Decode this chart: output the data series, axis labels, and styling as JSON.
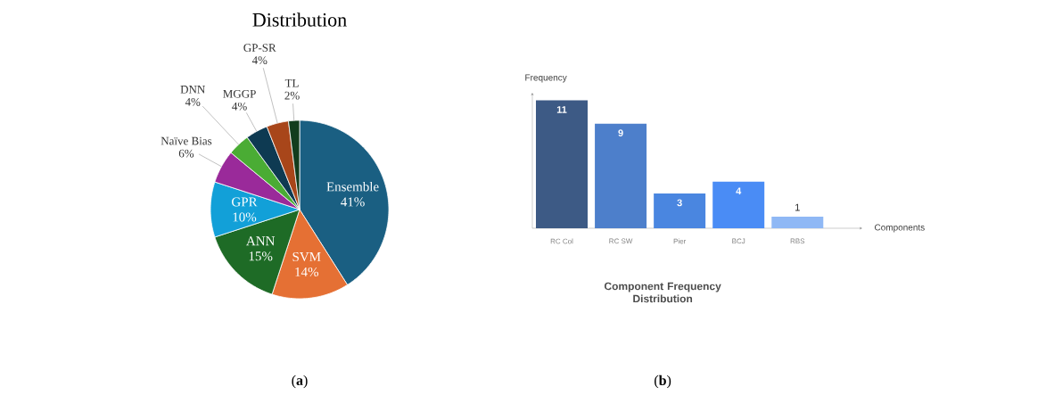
{
  "chart_data": [
    {
      "type": "pie",
      "title": "Distribution",
      "categories": [
        "Ensemble",
        "SVM",
        "ANN",
        "GPR",
        "Naïve Bias",
        "DNN",
        "MGGP",
        "GP-SR",
        "TL"
      ],
      "values": [
        41,
        14,
        15,
        10,
        6,
        4,
        4,
        4,
        2
      ],
      "value_labels": [
        "41%",
        "14%",
        "15%",
        "10%",
        "6%",
        "4%",
        "4%",
        "4%",
        "2%"
      ],
      "colors": [
        "#1a5f82",
        "#e57034",
        "#1e6b26",
        "#12a0d8",
        "#9a2a9a",
        "#4aac34",
        "#0e3a52",
        "#a8461a",
        "#123d1d"
      ],
      "annotations": [
        "(**a**)"
      ]
    },
    {
      "type": "bar",
      "title": "Component Frequency Distribution",
      "xlabel": "Components",
      "ylabel": "Frequency",
      "categories": [
        "RC Col",
        "RC SW",
        "Pier",
        "BCJ",
        "RBS"
      ],
      "values": [
        11,
        9,
        3,
        4,
        1
      ],
      "colors": [
        "#3d5a85",
        "#4d7fcb",
        "#4a86e0",
        "#4a8cf5",
        "#8fb8f5"
      ],
      "data_labels": true,
      "annotations": [
        "(**b**)"
      ]
    }
  ]
}
